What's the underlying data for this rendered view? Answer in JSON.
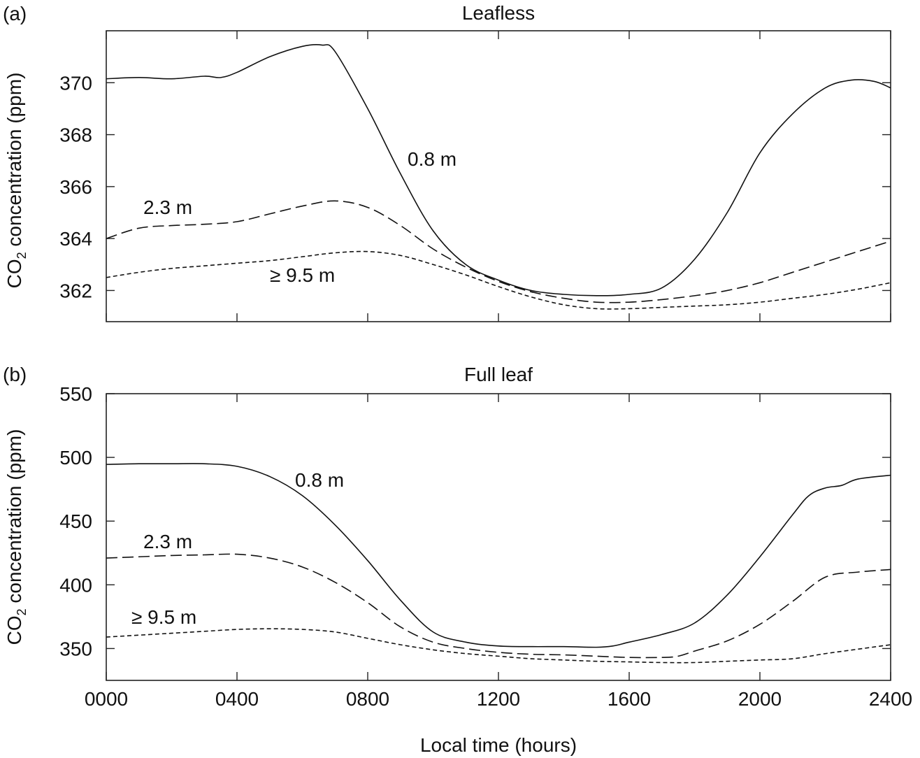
{
  "chart_data": [
    {
      "type": "line",
      "panel_label": "(a)",
      "title": "Leafless",
      "ylabel_main": "CO",
      "ylabel_sub": "2",
      "ylabel_rest": " concentration (ppm)",
      "xlabel": "",
      "ylim": [
        360.8,
        372
      ],
      "yticks": [
        362,
        364,
        366,
        368,
        370
      ],
      "ytick_labels": [
        "362",
        "364",
        "366",
        "368",
        "370"
      ],
      "xlim": [
        0,
        2400
      ],
      "xticks": [
        0,
        400,
        800,
        1200,
        1600,
        2000,
        2400
      ],
      "series": [
        {
          "name": "0.8 m",
          "style": "solid",
          "x": [
            0,
            100,
            200,
            300,
            350,
            400,
            500,
            600,
            660,
            700,
            800,
            900,
            1000,
            1100,
            1200,
            1300,
            1400,
            1500,
            1600,
            1700,
            1800,
            1900,
            2000,
            2100,
            2200,
            2280,
            2350,
            2400
          ],
          "y": [
            370.15,
            370.2,
            370.15,
            370.25,
            370.2,
            370.4,
            371.0,
            371.4,
            371.45,
            371.2,
            369.0,
            366.5,
            364.3,
            363.0,
            362.4,
            362.0,
            361.85,
            361.8,
            361.85,
            362.1,
            363.2,
            365.0,
            367.3,
            368.8,
            369.8,
            370.1,
            370.05,
            369.8
          ]
        },
        {
          "name": "2.3 m",
          "style": "long-dash",
          "x": [
            0,
            100,
            200,
            300,
            400,
            500,
            600,
            700,
            800,
            900,
            1000,
            1100,
            1200,
            1300,
            1400,
            1500,
            1600,
            1700,
            1800,
            1900,
            2000,
            2100,
            2200,
            2300,
            2400
          ],
          "y": [
            364.0,
            364.4,
            364.5,
            364.55,
            364.65,
            364.95,
            365.25,
            365.45,
            365.2,
            364.5,
            363.6,
            362.9,
            362.35,
            361.95,
            361.7,
            361.55,
            361.55,
            361.65,
            361.8,
            362.0,
            362.3,
            362.7,
            363.1,
            363.5,
            363.9
          ]
        },
        {
          "name": "≥ 9.5 m",
          "style": "short-dash",
          "x": [
            0,
            100,
            200,
            300,
            400,
            500,
            600,
            700,
            800,
            900,
            1000,
            1100,
            1200,
            1300,
            1400,
            1500,
            1600,
            1700,
            1800,
            1900,
            2000,
            2100,
            2200,
            2300,
            2400
          ],
          "y": [
            362.5,
            362.7,
            362.85,
            362.95,
            363.05,
            363.15,
            363.3,
            363.45,
            363.5,
            363.35,
            363.0,
            362.6,
            362.15,
            361.75,
            361.45,
            361.3,
            361.3,
            361.35,
            361.4,
            361.45,
            361.55,
            361.7,
            361.85,
            362.05,
            362.3
          ]
        }
      ],
      "annotations": [
        {
          "text": "0.8 m",
          "series": "0.8 m"
        },
        {
          "text": "2.3 m",
          "series": "2.3 m"
        },
        {
          "text": "≥ 9.5 m",
          "series": "≥ 9.5 m"
        }
      ]
    },
    {
      "type": "line",
      "panel_label": "(b)",
      "title": "Full leaf",
      "ylabel_main": "CO",
      "ylabel_sub": "2",
      "ylabel_rest": " concentration (ppm)",
      "xlabel": "Local time (hours)",
      "ylim": [
        325,
        550
      ],
      "yticks": [
        350,
        400,
        450,
        500,
        550
      ],
      "ytick_labels": [
        "350",
        "400",
        "450",
        "500",
        "550"
      ],
      "xlim": [
        0,
        2400
      ],
      "xticks": [
        0,
        400,
        800,
        1200,
        1600,
        2000,
        2400
      ],
      "xtick_labels": [
        "0000",
        "0400",
        "0800",
        "1200",
        "1600",
        "2000",
        "2400"
      ],
      "series": [
        {
          "name": "0.8 m",
          "style": "solid",
          "x": [
            0,
            100,
            200,
            300,
            400,
            500,
            600,
            700,
            800,
            900,
            1000,
            1100,
            1200,
            1300,
            1400,
            1500,
            1550,
            1600,
            1700,
            1800,
            1900,
            2000,
            2100,
            2150,
            2200,
            2250,
            2300,
            2400
          ],
          "y": [
            494.5,
            495,
            495,
            495,
            493,
            485,
            470,
            447,
            419,
            388,
            363,
            355,
            352,
            351.5,
            351.5,
            351,
            352,
            355,
            361,
            370,
            392,
            422,
            455,
            470,
            476,
            478,
            483,
            486
          ]
        },
        {
          "name": "2.3 m",
          "style": "long-dash",
          "x": [
            0,
            100,
            200,
            300,
            400,
            500,
            600,
            700,
            800,
            900,
            1000,
            1100,
            1200,
            1300,
            1400,
            1500,
            1600,
            1700,
            1750,
            1800,
            1900,
            2000,
            2100,
            2200,
            2300,
            2400
          ],
          "y": [
            421,
            422,
            423,
            423.5,
            424,
            421,
            414,
            402,
            386,
            367,
            355,
            350,
            347,
            345.5,
            345,
            344,
            343,
            343,
            344,
            348,
            356,
            369,
            387,
            406,
            410,
            412
          ]
        },
        {
          "name": "≥ 9.5 m",
          "style": "short-dash",
          "x": [
            0,
            100,
            200,
            300,
            400,
            500,
            600,
            700,
            800,
            900,
            1000,
            1100,
            1200,
            1300,
            1400,
            1500,
            1600,
            1700,
            1800,
            1900,
            2000,
            2100,
            2200,
            2300,
            2400
          ],
          "y": [
            359,
            360.5,
            362,
            363.5,
            365,
            365.5,
            365,
            363,
            358,
            353,
            349,
            346,
            344,
            342,
            341,
            340,
            339.5,
            339,
            339,
            340,
            341,
            342,
            346,
            349.5,
            353
          ]
        }
      ],
      "annotations": [
        {
          "text": "0.8 m",
          "series": "0.8 m"
        },
        {
          "text": "2.3 m",
          "series": "2.3 m"
        },
        {
          "text": "≥ 9.5 m",
          "series": "≥ 9.5 m"
        }
      ]
    }
  ]
}
